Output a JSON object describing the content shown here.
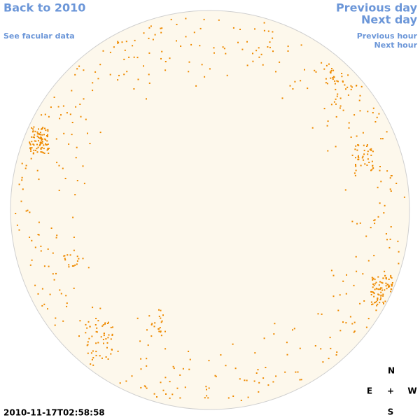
{
  "nav": {
    "back": "Back to 2010",
    "facular": "See facular data",
    "previous_day": "Previous day",
    "next_day": "Next day",
    "previous_hour": "Previous hour",
    "next_hour": "Next hour"
  },
  "timestamp": "2010-11-17T02:58:58",
  "compass": {
    "north": "N",
    "east": "E",
    "center": "+",
    "west": "W",
    "south": "S"
  }
}
